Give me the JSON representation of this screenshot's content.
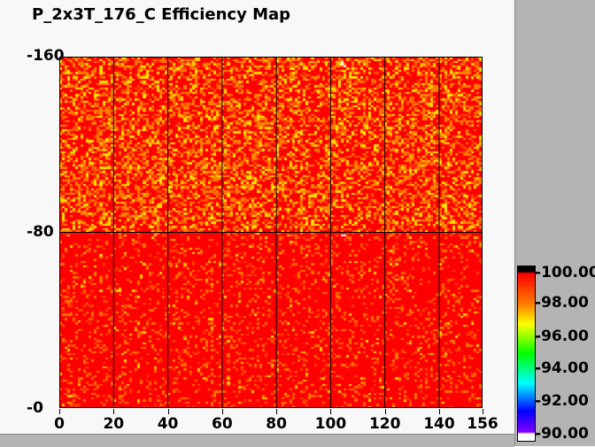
{
  "title": "P_2x3T_176_C Efficiency Map",
  "chart_data": {
    "type": "heatmap",
    "title": "P_2x3T_176_C Efficiency Map",
    "xlim": [
      0,
      156
    ],
    "ylim": [
      0,
      160
    ],
    "x_ticks": [
      "0",
      "20",
      "40",
      "60",
      "80",
      "100",
      "120",
      "140",
      "156"
    ],
    "y_ticks": [
      "0",
      "80",
      "160"
    ],
    "grid": true,
    "grid_x": [
      20,
      40,
      60,
      80,
      100,
      120,
      140
    ],
    "grid_y": [
      80
    ],
    "colorbar": {
      "range": [
        90,
        100
      ],
      "tick_labels": [
        "100.00",
        "98.00",
        "96.00",
        "94.00",
        "92.00",
        "90.00"
      ],
      "colors": [
        "#000000",
        "#ff0000",
        "#ffff00",
        "#00ff00",
        "#00ffff",
        "#0000ff",
        "#8000ff",
        "#ffffff"
      ],
      "placement": "right"
    },
    "description_of_values": "Efficiency per pixel mostly 99-100 (red), lower half nearly uniform red with scattered orange; upper half (rows 80-160) more orange/yellow ~98-99",
    "dead_pixels": [
      {
        "x": 104,
        "y": 156
      },
      {
        "x": 104,
        "y": 157
      },
      {
        "x": 105,
        "y": 155
      },
      {
        "x": 104,
        "y": 78
      },
      {
        "x": 105,
        "y": 78
      }
    ]
  },
  "colors": {
    "background": "#f8f8f8",
    "panel": "#b4b4b4"
  }
}
